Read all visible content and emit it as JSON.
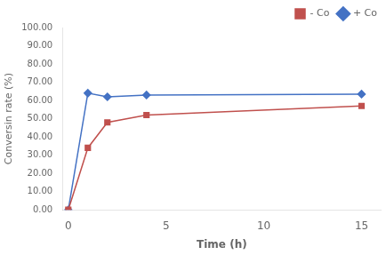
{
  "chart_data": {
    "type": "line",
    "xlabel": "Time (h)",
    "ylabel": "Conversin rate (%)",
    "x": [
      0,
      1,
      2,
      4,
      15
    ],
    "series": [
      {
        "name": "- Co",
        "color": "#C0504D",
        "marker": "square",
        "values": [
          0,
          34,
          48,
          52,
          57
        ]
      },
      {
        "name": "+ Co",
        "color": "#4472C4",
        "marker": "diamond",
        "values": [
          0,
          64,
          62,
          63,
          63.5
        ]
      }
    ],
    "xlim": [
      -0.3,
      16
    ],
    "xticks": [
      0,
      5,
      10,
      15
    ],
    "ylim": [
      0,
      100
    ],
    "yticks": [
      {
        "value": 0,
        "label": "0.00"
      },
      {
        "value": 10,
        "label": "10.00"
      },
      {
        "value": 20,
        "label": "20.00"
      },
      {
        "value": 30,
        "label": "30.00"
      },
      {
        "value": 40,
        "label": "40.00"
      },
      {
        "value": 50,
        "label": "50.00"
      },
      {
        "value": 60,
        "label": "60.00"
      },
      {
        "value": 70,
        "label": "70.00"
      },
      {
        "value": 80,
        "label": "80.00"
      },
      {
        "value": 90,
        "label": "90.00"
      },
      {
        "value": 100,
        "label": "100.00"
      }
    ],
    "legend": "upper right",
    "grid": false
  }
}
